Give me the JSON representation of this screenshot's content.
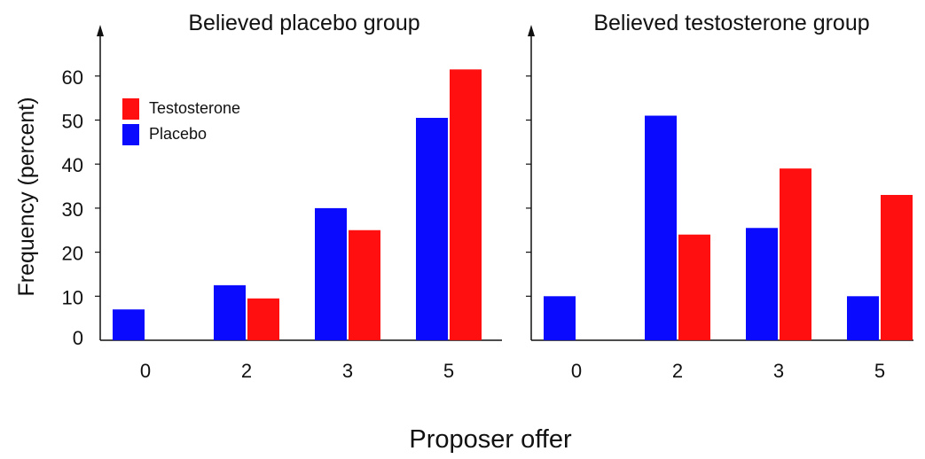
{
  "figure": {
    "ylabel": "Frequency (percent)",
    "xlabel": "Proposer offer"
  },
  "legend": {
    "placement": "top-left of first panel",
    "items": [
      {
        "name": "Testosterone",
        "color": "#ff0f0f"
      },
      {
        "name": "Placebo",
        "color": "#0a0aff"
      }
    ]
  },
  "chart_data": [
    {
      "type": "bar",
      "title": "Believed placebo group",
      "categories": [
        "0",
        "2",
        "3",
        "5"
      ],
      "ylim": [
        0,
        60
      ],
      "yticks": [
        0,
        10,
        20,
        30,
        40,
        50,
        60
      ],
      "grid": false,
      "series": [
        {
          "name": "Placebo",
          "color": "#0a0aff",
          "values": [
            7,
            12.5,
            30,
            50.5
          ]
        },
        {
          "name": "Testosterone",
          "color": "#ff0f0f",
          "values": [
            0,
            9.5,
            25,
            61.5
          ]
        }
      ]
    },
    {
      "type": "bar",
      "title": "Believed testosterone group",
      "categories": [
        "0",
        "2",
        "3",
        "5"
      ],
      "ylim": [
        0,
        60
      ],
      "yticks": [
        0,
        10,
        20,
        30,
        40,
        50,
        60
      ],
      "grid": false,
      "series": [
        {
          "name": "Placebo",
          "color": "#0a0aff",
          "values": [
            10,
            51,
            25.5,
            10
          ]
        },
        {
          "name": "Testosterone",
          "color": "#ff0f0f",
          "values": [
            0,
            24,
            39,
            33
          ]
        }
      ]
    }
  ]
}
